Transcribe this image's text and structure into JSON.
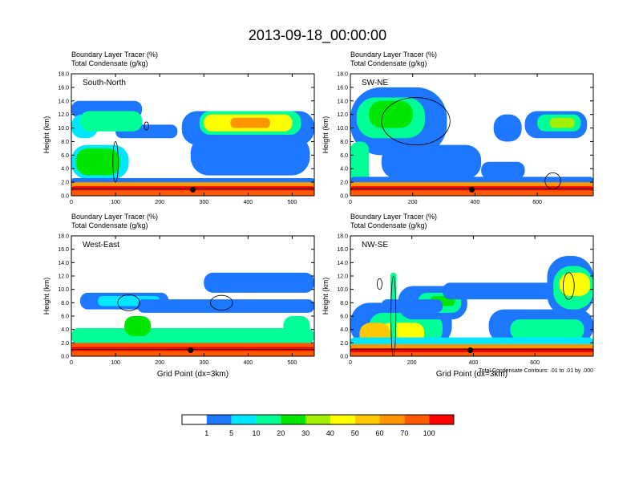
{
  "title": "2013-09-18_00:00:00",
  "palette": [
    "#ffffff",
    "#1e78ff",
    "#00e6ff",
    "#00ff96",
    "#00e600",
    "#a0f000",
    "#ffff00",
    "#ffc800",
    "#ff9600",
    "#ff5a00",
    "#ff0000"
  ],
  "colorbar": {
    "labels": [
      "1",
      "5",
      "10",
      "20",
      "30",
      "40",
      "50",
      "60",
      "70",
      "100"
    ]
  },
  "contour_note": "Total Condensate Contours: .01 to .01 by .000",
  "chart_data": [
    {
      "type": "heatmap",
      "name": "panel-south-north",
      "label": "South-North",
      "title_line1": "Boundary Layer Tracer   (%)",
      "title_line2": "Total Condensate   (g/kg)",
      "ylabel": "Height (km)",
      "xlabel": "",
      "xlim": [
        0,
        550
      ],
      "xticks": [
        "0",
        "100",
        "200",
        "300",
        "400",
        "500"
      ],
      "xtick_values": [
        0,
        100,
        200,
        300,
        400,
        500
      ],
      "ylim": [
        0,
        18
      ],
      "yticks": [
        "0.0",
        "2.0",
        "4.0",
        "6.0",
        "8.0",
        "10.0",
        "12.0",
        "14.0",
        "16.0",
        "18.0"
      ],
      "marker_x": 275,
      "ground": [
        [
          0,
          1.0
        ],
        [
          550,
          1.0
        ]
      ],
      "blobs": [
        {
          "x": [
            0,
            160
          ],
          "y": [
            11.5,
            14.0
          ],
          "v": 1
        },
        {
          "x": [
            100,
            240
          ],
          "y": [
            8.5,
            10.5
          ],
          "v": 1
        },
        {
          "x": [
            0,
            60
          ],
          "y": [
            8.5,
            12.0
          ],
          "v": 2
        },
        {
          "x": [
            20,
            160
          ],
          "y": [
            9.5,
            12.5
          ],
          "v": 3
        },
        {
          "x": [
            250,
            550
          ],
          "y": [
            7.5,
            12.5
          ],
          "v": 1
        },
        {
          "x": [
            270,
            540
          ],
          "y": [
            3.0,
            9.0
          ],
          "v": 1
        },
        {
          "x": [
            290,
            520
          ],
          "y": [
            9.0,
            12.5
          ],
          "v": 3
        },
        {
          "x": [
            300,
            500
          ],
          "y": [
            9.5,
            12.0
          ],
          "v": 6
        },
        {
          "x": [
            360,
            450
          ],
          "y": [
            10.0,
            11.5
          ],
          "v": 8
        },
        {
          "x": [
            0,
            130
          ],
          "y": [
            2.5,
            7.5
          ],
          "v": 2
        },
        {
          "x": [
            10,
            110
          ],
          "y": [
            3.0,
            7.0
          ],
          "v": 4
        },
        {
          "x": [
            0,
            550
          ],
          "y": [
            1.8,
            2.6
          ],
          "v": 1
        },
        {
          "x": [
            0,
            550
          ],
          "y": [
            1.2,
            2.0
          ],
          "v": 8
        },
        {
          "x": [
            0,
            550
          ],
          "y": [
            0.6,
            1.4
          ],
          "v": 10
        },
        {
          "x": [
            0,
            550
          ],
          "y": [
            0.0,
            0.8
          ],
          "v": 9
        }
      ],
      "contours": [
        {
          "cx": 100,
          "cy": 5.0,
          "rx": 6,
          "ry": 3.0
        },
        {
          "cx": 170,
          "cy": 10.3,
          "rx": 5,
          "ry": 0.6
        }
      ]
    },
    {
      "type": "heatmap",
      "name": "panel-sw-ne",
      "label": "SW-NE",
      "title_line1": "Boundary Layer Tracer   (%)",
      "title_line2": "Total Condensate   (g/kg)",
      "ylabel": "Height (km)",
      "xlabel": "",
      "xlim": [
        0,
        780
      ],
      "xticks": [
        "0",
        "200",
        "400",
        "600"
      ],
      "xtick_values": [
        0,
        200,
        400,
        600
      ],
      "ylim": [
        0,
        18
      ],
      "yticks": [
        "0.0",
        "2.0",
        "4.0",
        "6.0",
        "8.0",
        "10.0",
        "12.0",
        "14.0",
        "16.0",
        "18.0"
      ],
      "marker_x": 390,
      "ground": [
        [
          0,
          1.0
        ],
        [
          780,
          1.0
        ]
      ],
      "blobs": [
        {
          "x": [
            0,
            310
          ],
          "y": [
            6.0,
            16.0
          ],
          "v": 1
        },
        {
          "x": [
            20,
            240
          ],
          "y": [
            8.5,
            14.5
          ],
          "v": 3
        },
        {
          "x": [
            60,
            200
          ],
          "y": [
            10.0,
            14.0
          ],
          "v": 4
        },
        {
          "x": [
            0,
            60
          ],
          "y": [
            1.0,
            8.0
          ],
          "v": 3
        },
        {
          "x": [
            100,
            420
          ],
          "y": [
            2.5,
            7.5
          ],
          "v": 1
        },
        {
          "x": [
            420,
            560
          ],
          "y": [
            2.5,
            5.0
          ],
          "v": 1
        },
        {
          "x": [
            460,
            550
          ],
          "y": [
            8.0,
            12.0
          ],
          "v": 1
        },
        {
          "x": [
            560,
            760
          ],
          "y": [
            8.5,
            12.5
          ],
          "v": 1
        },
        {
          "x": [
            600,
            740
          ],
          "y": [
            9.5,
            12.0
          ],
          "v": 3
        },
        {
          "x": [
            640,
            720
          ],
          "y": [
            10.0,
            11.5
          ],
          "v": 5
        },
        {
          "x": [
            0,
            780
          ],
          "y": [
            1.8,
            2.8
          ],
          "v": 1
        },
        {
          "x": [
            0,
            780
          ],
          "y": [
            1.2,
            2.0
          ],
          "v": 8
        },
        {
          "x": [
            0,
            780
          ],
          "y": [
            0.6,
            1.4
          ],
          "v": 10
        },
        {
          "x": [
            0,
            780
          ],
          "y": [
            0.0,
            0.8
          ],
          "v": 9
        }
      ],
      "contours": [
        {
          "cx": 210,
          "cy": 11.0,
          "rx": 110,
          "ry": 3.5
        },
        {
          "cx": 650,
          "cy": 2.2,
          "rx": 25,
          "ry": 1.2
        }
      ]
    },
    {
      "type": "heatmap",
      "name": "panel-west-east",
      "label": "West-East",
      "title_line1": "Boundary Layer Tracer   (%)",
      "title_line2": "Total Condensate   (g/kg)",
      "ylabel": "Height (km)",
      "xlabel": "Grid Point (dx=3km)",
      "xlim": [
        0,
        550
      ],
      "xticks": [
        "0",
        "100",
        "200",
        "300",
        "400",
        "500"
      ],
      "xtick_values": [
        0,
        100,
        200,
        300,
        400,
        500
      ],
      "ylim": [
        0,
        18
      ],
      "yticks": [
        "0.0",
        "2.0",
        "4.0",
        "6.0",
        "8.0",
        "10.0",
        "12.0",
        "14.0",
        "16.0",
        "18.0"
      ],
      "marker_x": 270,
      "ground": [
        [
          0,
          1.0
        ],
        [
          550,
          1.0
        ]
      ],
      "blobs": [
        {
          "x": [
            0,
            550
          ],
          "y": [
            1.8,
            4.2
          ],
          "v": 3
        },
        {
          "x": [
            0,
            550
          ],
          "y": [
            1.2,
            2.0
          ],
          "v": 9
        },
        {
          "x": [
            0,
            550
          ],
          "y": [
            0.6,
            1.4
          ],
          "v": 10
        },
        {
          "x": [
            0,
            550
          ],
          "y": [
            0.0,
            0.8
          ],
          "v": 9
        },
        {
          "x": [
            20,
            220
          ],
          "y": [
            7.0,
            9.5
          ],
          "v": 1
        },
        {
          "x": [
            60,
            200
          ],
          "y": [
            7.5,
            9.0
          ],
          "v": 2
        },
        {
          "x": [
            150,
            550
          ],
          "y": [
            6.5,
            8.5
          ],
          "v": 1
        },
        {
          "x": [
            300,
            550
          ],
          "y": [
            9.5,
            12.5
          ],
          "v": 1
        },
        {
          "x": [
            120,
            180
          ],
          "y": [
            3.0,
            6.0
          ],
          "v": 4
        },
        {
          "x": [
            480,
            540
          ],
          "y": [
            3.0,
            6.0
          ],
          "v": 3
        }
      ],
      "contours": [
        {
          "cx": 130,
          "cy": 8.0,
          "rx": 25,
          "ry": 1.2
        },
        {
          "cx": 340,
          "cy": 8.0,
          "rx": 25,
          "ry": 1.1
        }
      ]
    },
    {
      "type": "heatmap",
      "name": "panel-nw-se",
      "label": "NW-SE",
      "title_line1": "Boundary Layer Tracer   (%)",
      "title_line2": "Total Condensate   (g/kg)",
      "ylabel": "Height (km)",
      "xlabel": "Grid Point (dx=3km)",
      "xlim": [
        0,
        790
      ],
      "xticks": [
        "0",
        "200",
        "400",
        "600"
      ],
      "xtick_values": [
        0,
        200,
        400,
        600
      ],
      "ylim": [
        0,
        18
      ],
      "yticks": [
        "0.0",
        "2.0",
        "4.0",
        "6.0",
        "8.0",
        "10.0",
        "12.0",
        "14.0",
        "16.0",
        "18.0"
      ],
      "marker_x": 390,
      "ground": [
        [
          0,
          1.0
        ],
        [
          790,
          1.0
        ]
      ],
      "blobs": [
        {
          "x": [
            0,
            330
          ],
          "y": [
            1.5,
            8.0
          ],
          "v": 1
        },
        {
          "x": [
            60,
            300
          ],
          "y": [
            1.8,
            6.5
          ],
          "v": 3
        },
        {
          "x": [
            100,
            240
          ],
          "y": [
            2.0,
            5.0
          ],
          "v": 6
        },
        {
          "x": [
            30,
            130
          ],
          "y": [
            1.5,
            5.0
          ],
          "v": 7
        },
        {
          "x": [
            130,
            150
          ],
          "y": [
            1.0,
            12.5
          ],
          "v": 3
        },
        {
          "x": [
            155,
            380
          ],
          "y": [
            5.5,
            10.5
          ],
          "v": 1
        },
        {
          "x": [
            220,
            360
          ],
          "y": [
            6.5,
            9.5
          ],
          "v": 3
        },
        {
          "x": [
            260,
            340
          ],
          "y": [
            7.5,
            9.0
          ],
          "v": 4
        },
        {
          "x": [
            100,
            300
          ],
          "y": [
            6.5,
            8.5
          ],
          "v": 1
        },
        {
          "x": [
            300,
            700
          ],
          "y": [
            8.5,
            11.0
          ],
          "v": 1
        },
        {
          "x": [
            450,
            790
          ],
          "y": [
            2.0,
            7.0
          ],
          "v": 1
        },
        {
          "x": [
            520,
            760
          ],
          "y": [
            2.5,
            5.5
          ],
          "v": 3
        },
        {
          "x": [
            640,
            790
          ],
          "y": [
            6.0,
            15.0
          ],
          "v": 1
        },
        {
          "x": [
            660,
            790
          ],
          "y": [
            7.0,
            13.5
          ],
          "v": 3
        },
        {
          "x": [
            680,
            780
          ],
          "y": [
            9.0,
            12.5
          ],
          "v": 6
        },
        {
          "x": [
            0,
            790
          ],
          "y": [
            1.5,
            2.8
          ],
          "v": 2
        },
        {
          "x": [
            0,
            790
          ],
          "y": [
            1.0,
            1.8
          ],
          "v": 8
        },
        {
          "x": [
            0,
            790
          ],
          "y": [
            0.5,
            1.2
          ],
          "v": 10
        },
        {
          "x": [
            0,
            790
          ],
          "y": [
            0.0,
            0.6
          ],
          "v": 9
        }
      ],
      "contours": [
        {
          "cx": 140,
          "cy": 6.0,
          "rx": 8,
          "ry": 6.0
        },
        {
          "cx": 95,
          "cy": 10.8,
          "rx": 8,
          "ry": 0.8
        },
        {
          "cx": 710,
          "cy": 10.5,
          "rx": 18,
          "ry": 2.0
        }
      ]
    }
  ]
}
